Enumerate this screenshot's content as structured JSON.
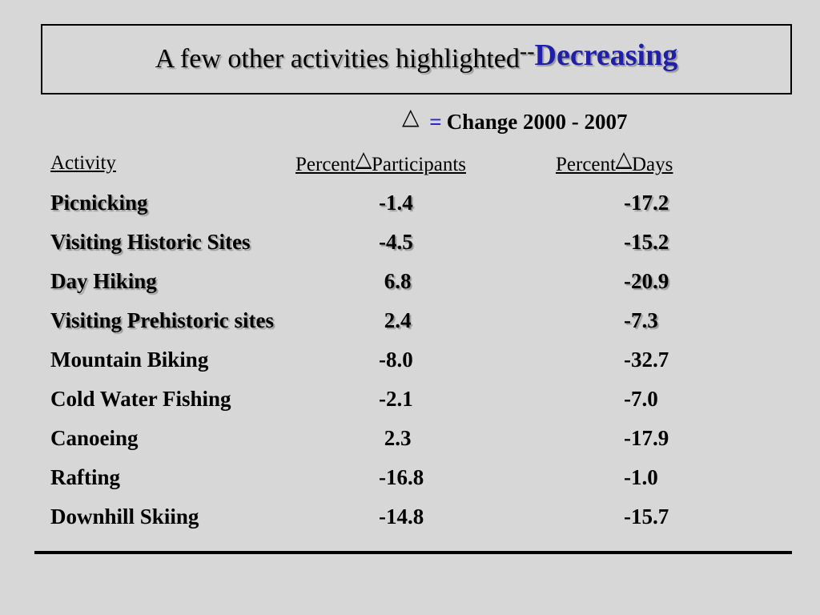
{
  "title": {
    "main": "A few other activities highlighted",
    "dash": "--",
    "accent": "Decreasing"
  },
  "legend": {
    "symbol": "△",
    "equals": "=",
    "text": "Change 2000 - 2007"
  },
  "header": {
    "activity": "Activity",
    "col1_prefix": "Percent",
    "col1_symbol": "△",
    "col1_suffix": "Participants",
    "col2_prefix": "Percent",
    "col2_symbol": "△",
    "col2_suffix": "Days"
  },
  "rows": [
    {
      "activity": "Picnicking",
      "participants": "-1.4",
      "days": "-17.2"
    },
    {
      "activity": "Visiting Historic Sites",
      "participants": "-4.5",
      "days": "-15.2"
    },
    {
      "activity": "Day Hiking",
      "participants": " 6.8",
      "days": "-20.9"
    },
    {
      "activity": "Visiting Prehistoric sites",
      "participants": " 2.4",
      "days": "-7.3"
    },
    {
      "activity": "Mountain Biking",
      "participants": "-8.0",
      "days": "-32.7"
    },
    {
      "activity": "Cold Water Fishing",
      "participants": "-2.1",
      "days": "-7.0"
    },
    {
      "activity": "Canoeing",
      "participants": " 2.3",
      "days": "-17.9"
    },
    {
      "activity": "Rafting",
      "participants": "-16.8",
      "days": "-1.0"
    },
    {
      "activity": "Downhill Skiing",
      "participants": "-14.8",
      "days": "-15.7"
    }
  ]
}
